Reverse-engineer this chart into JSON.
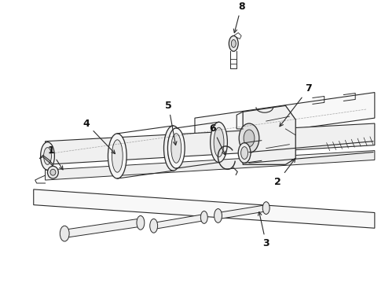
{
  "bg_color": "#ffffff",
  "line_color": "#2a2a2a",
  "label_color": "#111111",
  "lw": 0.9,
  "figsize": [
    4.9,
    3.6
  ],
  "dpi": 100
}
